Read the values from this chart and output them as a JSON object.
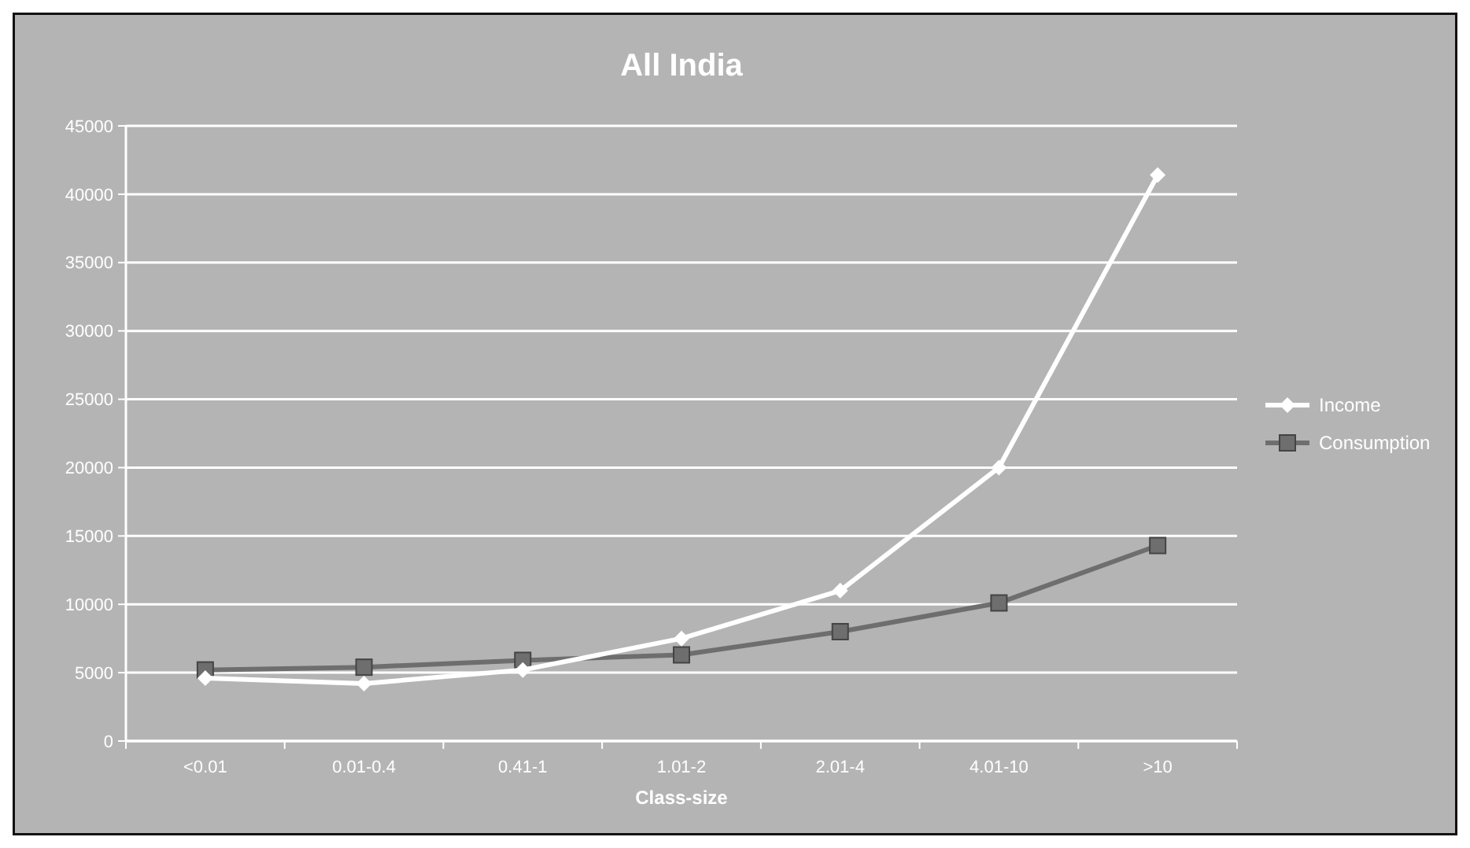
{
  "chart_data": {
    "type": "line",
    "title": "All India",
    "xlabel": "Class-size",
    "categories": [
      "<0.01",
      "0.01-0.4",
      "0.41-1",
      "1.01-2",
      "2.01-4",
      "4.01-10",
      ">10"
    ],
    "series": [
      {
        "name": "Income",
        "color": "#ffffff",
        "marker": "diamond",
        "values": [
          4600,
          4200,
          5200,
          7500,
          11000,
          20000,
          41400
        ]
      },
      {
        "name": "Consumption",
        "color": "#6e6e6e",
        "marker": "square",
        "values": [
          5200,
          5400,
          5900,
          6300,
          8000,
          10100,
          14300
        ]
      }
    ],
    "ylim": [
      0,
      45000
    ],
    "yticks": [
      0,
      5000,
      10000,
      15000,
      20000,
      25000,
      30000,
      35000,
      40000,
      45000
    ],
    "grid": "y",
    "legend": "right"
  }
}
